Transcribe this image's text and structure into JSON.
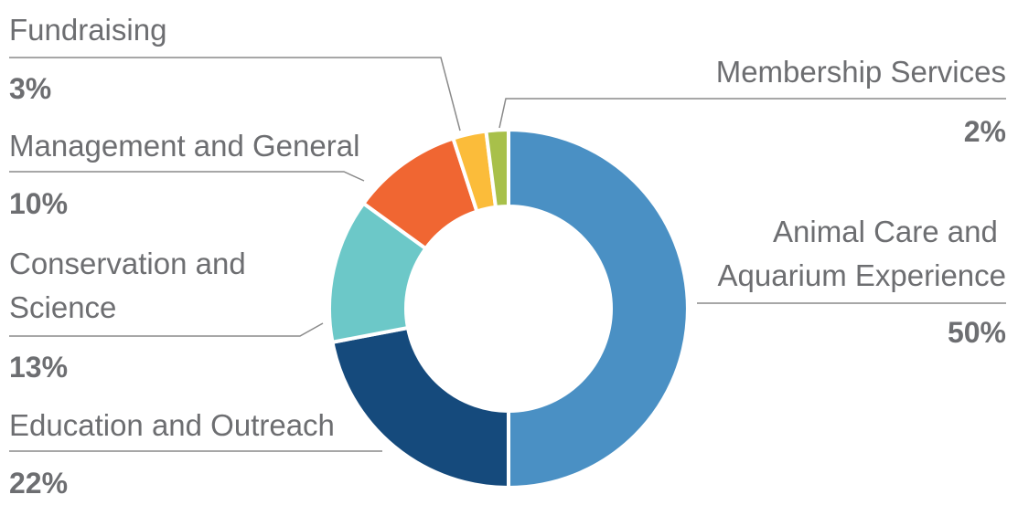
{
  "chart_data": {
    "type": "pie",
    "variant": "donut",
    "legend": "none",
    "slices": [
      {
        "label": "Animal Care and Aquarium Experience",
        "value": 50,
        "value_label": "50%",
        "color": "#4a90c4"
      },
      {
        "label": "Education and Outreach",
        "value": 22,
        "value_label": "22%",
        "color": "#154a7c"
      },
      {
        "label": "Conservation and Science",
        "value": 13,
        "value_label": "13%",
        "color": "#6cc8c8"
      },
      {
        "label": "Management and General",
        "value": 10,
        "value_label": "10%",
        "color": "#f06632"
      },
      {
        "label": "Fundraising",
        "value": 3,
        "value_label": "3%",
        "color": "#fbbc3a"
      },
      {
        "label": "Membership Services",
        "value": 2,
        "value_label": "2%",
        "color": "#a8c04a"
      }
    ]
  }
}
